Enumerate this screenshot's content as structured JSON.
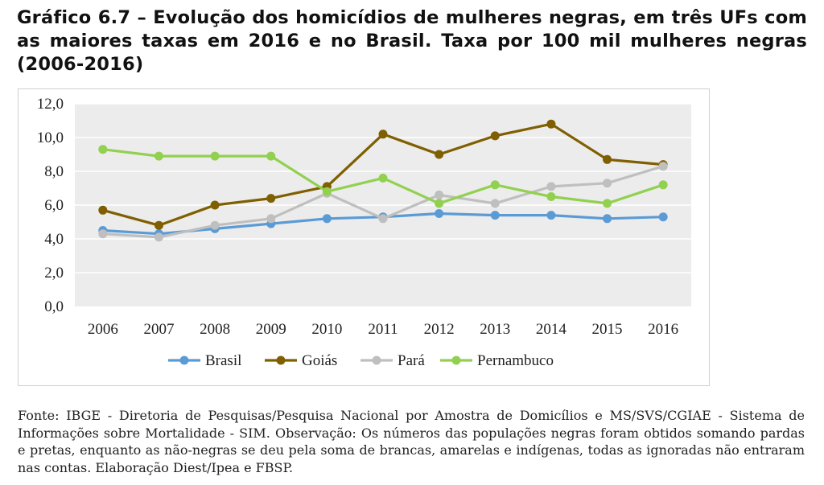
{
  "title": "Gráfico 6.7 – Evolução dos homicídios de mulheres negras, em três UFs com as maiores taxas em 2016 e no Brasil. Taxa por 100 mil mulheres negras (2006-2016)",
  "footer": "Fonte: IBGE - Diretoria de Pesquisas/Pesquisa Nacional por Amostra de Domicílios e MS/SVS/CGIAE - Sistema de Informações sobre Mortalidade - SIM. Observação: Os números das populações negras foram obtidos somando pardas e pretas, enquanto as não-negras se deu pela soma de brancas, amarelas e indígenas, todas as ignoradas não entraram nas contas. Elaboração Diest/Ipea e FBSP.",
  "chart_data": {
    "type": "line",
    "title": "",
    "xlabel": "",
    "ylabel": "",
    "x": [
      "2006",
      "2007",
      "2008",
      "2009",
      "2010",
      "2011",
      "2012",
      "2013",
      "2014",
      "2015",
      "2016"
    ],
    "ylim": [
      0,
      12
    ],
    "yticks": [
      "0,0",
      "2,0",
      "4,0",
      "6,0",
      "8,0",
      "10,0",
      "12,0"
    ],
    "grid": true,
    "plot_background": "#ececec",
    "legend_position": "bottom",
    "series": [
      {
        "name": "Brasil",
        "color": "#5b9bd5",
        "values": [
          4.5,
          4.3,
          4.6,
          4.9,
          5.2,
          5.3,
          5.5,
          5.4,
          5.4,
          5.2,
          5.3
        ]
      },
      {
        "name": "Goiás",
        "color": "#7f5f00",
        "values": [
          5.7,
          4.8,
          6.0,
          6.4,
          7.1,
          10.2,
          9.0,
          10.1,
          10.8,
          8.7,
          8.4
        ]
      },
      {
        "name": "Pará",
        "color": "#bfbfbf",
        "values": [
          4.3,
          4.1,
          4.8,
          5.2,
          6.7,
          5.2,
          6.6,
          6.1,
          7.1,
          7.3,
          8.3
        ]
      },
      {
        "name": "Pernambuco",
        "color": "#92d050",
        "values": [
          9.3,
          8.9,
          8.9,
          8.9,
          6.8,
          7.6,
          6.1,
          7.2,
          6.5,
          6.1,
          7.2
        ]
      }
    ]
  }
}
